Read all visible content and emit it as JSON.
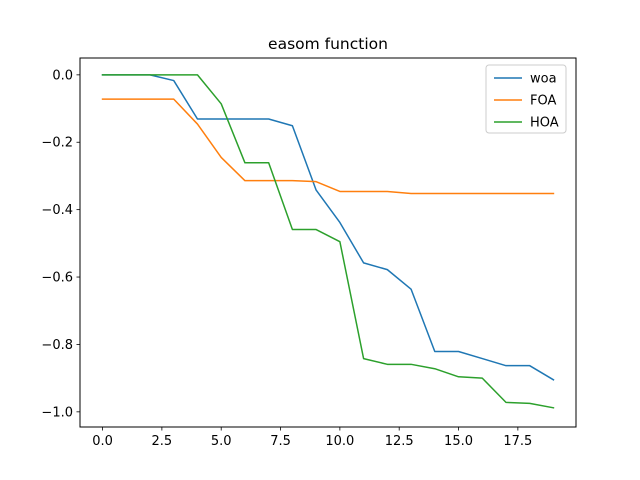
{
  "chart_data": {
    "type": "line",
    "title": "easom function",
    "xlabel": "",
    "ylabel": "",
    "xlim": [
      -0.95,
      19.95
    ],
    "ylim": [
      -1.045,
      0.05
    ],
    "xticks": [
      0.0,
      2.5,
      5.0,
      7.5,
      10.0,
      12.5,
      15.0,
      17.5
    ],
    "xtick_labels": [
      "0.0",
      "2.5",
      "5.0",
      "7.5",
      "10.0",
      "12.5",
      "15.0",
      "17.5"
    ],
    "yticks": [
      0.0,
      -0.2,
      -0.4,
      -0.6,
      -0.8,
      -1.0
    ],
    "ytick_labels": [
      "0.0",
      "−0.2",
      "−0.4",
      "−0.6",
      "−0.8",
      "−1.0"
    ],
    "grid": false,
    "legend_position": "top-right",
    "x": [
      0,
      1,
      2,
      3,
      4,
      5,
      6,
      7,
      8,
      9,
      10,
      11,
      12,
      13,
      14,
      15,
      16,
      17,
      18,
      19
    ],
    "series": [
      {
        "name": "woa",
        "color": "#1f77b4",
        "values": [
          0.0,
          0.0,
          0.0,
          -0.017,
          -0.131,
          -0.131,
          -0.131,
          -0.131,
          -0.151,
          -0.342,
          -0.438,
          -0.558,
          -0.578,
          -0.636,
          -0.821,
          -0.821,
          -0.842,
          -0.863,
          -0.863,
          -0.905
        ]
      },
      {
        "name": "FOA",
        "color": "#ff7f0e",
        "values": [
          -0.072,
          -0.072,
          -0.072,
          -0.072,
          -0.146,
          -0.245,
          -0.314,
          -0.314,
          -0.314,
          -0.317,
          -0.346,
          -0.346,
          -0.346,
          -0.352,
          -0.352,
          -0.352,
          -0.352,
          -0.352,
          -0.352,
          -0.352
        ]
      },
      {
        "name": "HOA",
        "color": "#2ca02c",
        "values": [
          0.0,
          0.0,
          0.0,
          0.0,
          0.0,
          -0.086,
          -0.261,
          -0.261,
          -0.459,
          -0.459,
          -0.495,
          -0.842,
          -0.859,
          -0.859,
          -0.872,
          -0.896,
          -0.9,
          -0.972,
          -0.975,
          -0.988
        ]
      }
    ]
  }
}
